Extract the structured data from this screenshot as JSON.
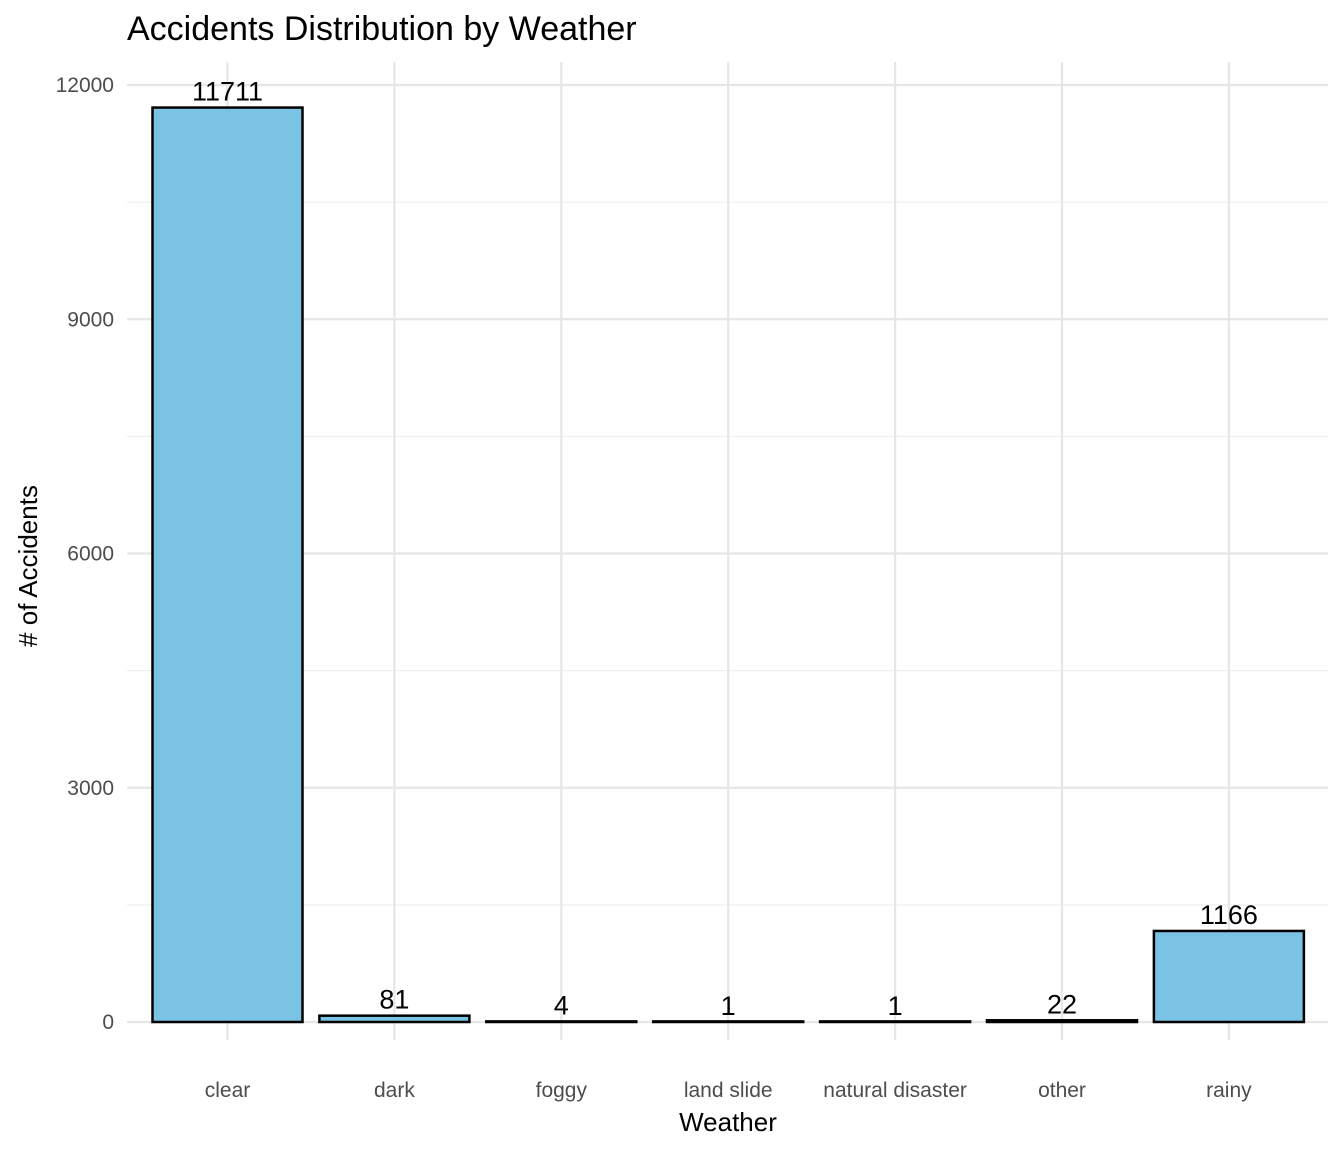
{
  "chart_data": {
    "type": "bar",
    "title": "Accidents Distribution by Weather",
    "xlabel": "Weather",
    "ylabel": "# of Accidents",
    "categories": [
      "clear",
      "dark",
      "foggy",
      "land slide",
      "natural disaster",
      "other",
      "rainy"
    ],
    "values": [
      11711,
      81,
      4,
      1,
      1,
      22,
      1166
    ],
    "data_labels": [
      "11711",
      "81",
      "4",
      "1",
      "1",
      "22",
      "1166"
    ],
    "ylim": [
      0,
      12000
    ],
    "yticks": [
      0,
      3000,
      6000,
      9000,
      12000
    ],
    "ytick_labels": [
      "0",
      "3000",
      "6000",
      "9000",
      "12000"
    ],
    "grid": true,
    "legend": "none",
    "colors": {
      "bar_fill": "#7BC3E4",
      "bar_outline": "#000000"
    }
  }
}
